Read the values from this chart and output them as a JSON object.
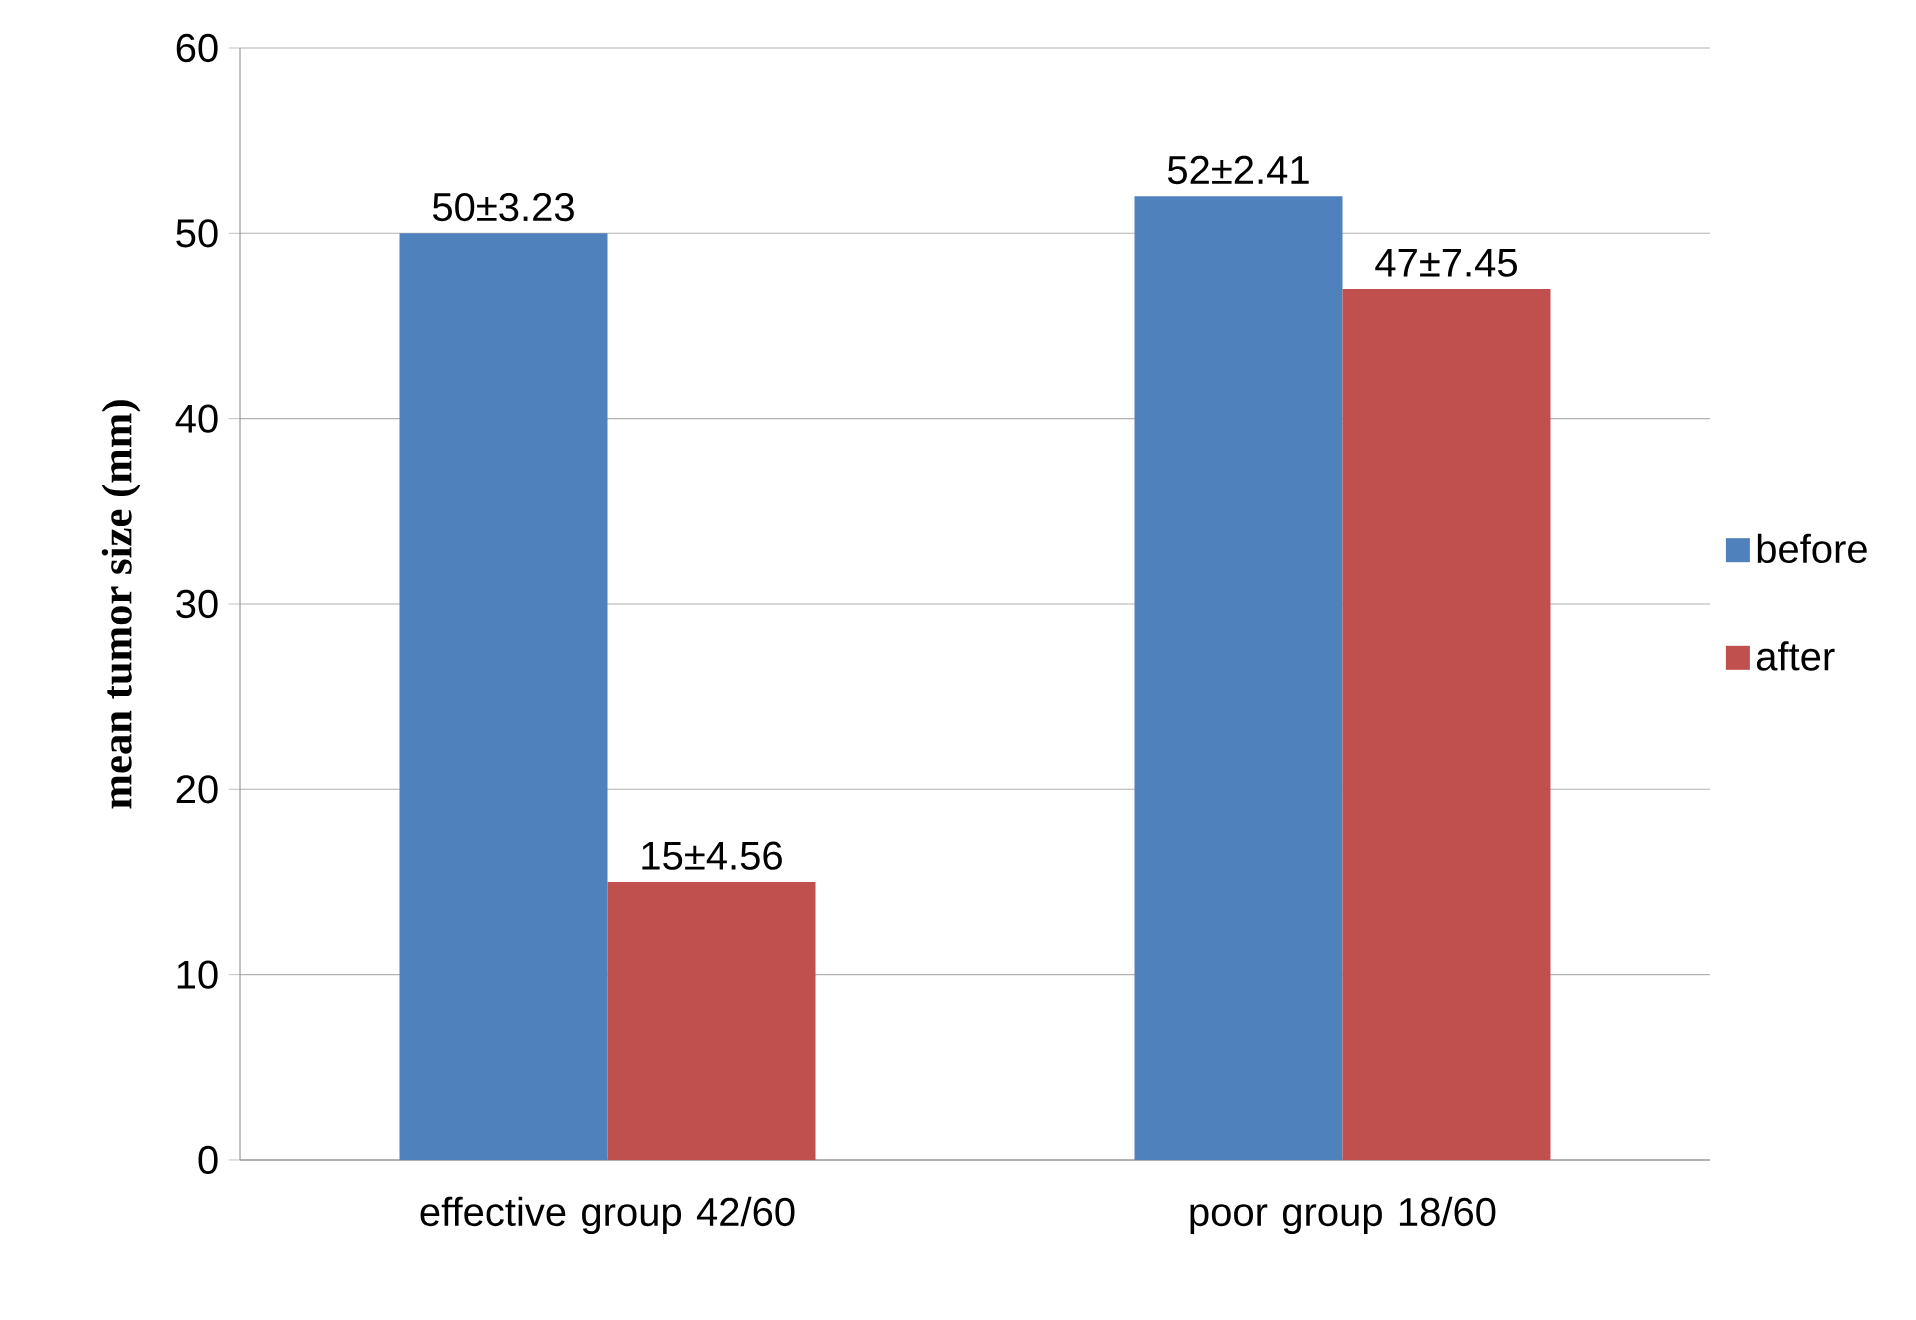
{
  "chart_data": {
    "type": "bar",
    "ylabel": "mean tumor size (mm)",
    "categories": [
      "effective group 42/60",
      "poor group 18/60"
    ],
    "series": [
      {
        "name": "before",
        "color": "#4f81bd",
        "values": [
          50,
          52
        ],
        "value_labels": [
          "50±3.23",
          "52±2.41"
        ]
      },
      {
        "name": "after",
        "color": "#c0504d",
        "values": [
          15,
          47
        ],
        "value_labels": [
          "15±4.56",
          "47±7.45"
        ]
      }
    ],
    "ylim": [
      0,
      60
    ],
    "yticks": [
      0,
      10,
      20,
      30,
      40,
      50,
      60
    ],
    "grid": "y",
    "legend": "right"
  }
}
